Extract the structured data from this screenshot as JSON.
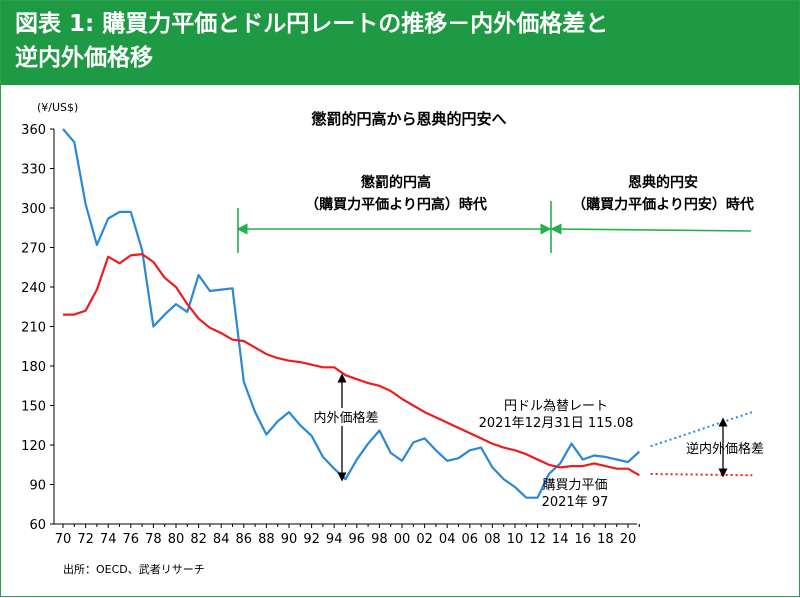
{
  "title": {
    "line1": "図表 1: 購買力平価とドル円レートの推移－内外価格差と",
    "line2": "逆内外価格移"
  },
  "source": "出所：OECD、武者リサーチ",
  "chart_data": {
    "type": "line",
    "ylabel": "(¥/US$)",
    "ylim": [
      60,
      360
    ],
    "yticks": [
      60,
      90,
      120,
      150,
      180,
      210,
      240,
      270,
      300,
      330,
      360
    ],
    "xlim": [
      1970,
      2020
    ],
    "xtick_labels": [
      "70",
      "72",
      "74",
      "76",
      "78",
      "80",
      "82",
      "84",
      "86",
      "88",
      "90",
      "92",
      "94",
      "96",
      "98",
      "00",
      "02",
      "04",
      "06",
      "08",
      "10",
      "12",
      "14",
      "16",
      "18",
      "20"
    ],
    "colors": {
      "exchange": "#2a88d8",
      "ppp": "#ee1c1c",
      "arrow_green": "#22b04a"
    },
    "series": [
      {
        "name": "円ドル為替レート",
        "key": "exchange",
        "x": [
          1970,
          1971,
          1972,
          1973,
          1974,
          1975,
          1976,
          1977,
          1978,
          1979,
          1980,
          1981,
          1982,
          1983,
          1984,
          1985,
          1986,
          1987,
          1988,
          1989,
          1990,
          1991,
          1992,
          1993,
          1994,
          1995,
          1996,
          1997,
          1998,
          1999,
          2000,
          2001,
          2002,
          2003,
          2004,
          2005,
          2006,
          2007,
          2008,
          2009,
          2010,
          2011,
          2012,
          2013,
          2014,
          2015,
          2016,
          2017,
          2018,
          2019,
          2020,
          2021
        ],
        "y": [
          360,
          350,
          303,
          272,
          292,
          297,
          297,
          268,
          210,
          219,
          227,
          221,
          249,
          237,
          238,
          239,
          168,
          145,
          128,
          138,
          145,
          135,
          127,
          111,
          102,
          94,
          109,
          121,
          131,
          114,
          108,
          122,
          125,
          116,
          108,
          110,
          116,
          118,
          103,
          94,
          88,
          80,
          80,
          98,
          106,
          121,
          109,
          112,
          111,
          109,
          107,
          115
        ]
      },
      {
        "name": "購買力平価",
        "key": "ppp",
        "x": [
          1970,
          1971,
          1972,
          1973,
          1974,
          1975,
          1976,
          1977,
          1978,
          1979,
          1980,
          1981,
          1982,
          1983,
          1984,
          1985,
          1986,
          1987,
          1988,
          1989,
          1990,
          1991,
          1992,
          1993,
          1994,
          1995,
          1996,
          1997,
          1998,
          1999,
          2000,
          2001,
          2002,
          2003,
          2004,
          2005,
          2006,
          2007,
          2008,
          2009,
          2010,
          2011,
          2012,
          2013,
          2014,
          2015,
          2016,
          2017,
          2018,
          2019,
          2020,
          2021
        ],
        "y": [
          219,
          219,
          222,
          238,
          263,
          258,
          264,
          265,
          259,
          247,
          240,
          227,
          216,
          209,
          205,
          200,
          199,
          194,
          189,
          186,
          184,
          183,
          181,
          179,
          179,
          173,
          170,
          167,
          165,
          161,
          155,
          150,
          145,
          141,
          137,
          133,
          129,
          125,
          121,
          118,
          116,
          113,
          109,
          105,
          103,
          104,
          104,
          106,
          104,
          102,
          102,
          97
        ]
      }
    ],
    "projections": [
      {
        "key": "exchange",
        "x": [
          2022,
          2031
        ],
        "y": [
          119,
          145
        ]
      },
      {
        "key": "ppp",
        "x": [
          2022,
          2031
        ],
        "y": [
          98,
          97
        ]
      }
    ],
    "annotations": {
      "main_heading": "懲罰的円高から恩典的円安へ",
      "period1_line1": "懲罰的円高",
      "period1_line2": "（購買力平価より円高）時代",
      "period2_line1": "恩典的円安",
      "period2_line2": "（購買力平価より円安）時代",
      "gap_label": "内外価格差",
      "reverse_gap_label": "逆内外価格差",
      "fx_label_line1": "円ドル為替レート",
      "fx_label_line2": "2021年12月31日 115.08",
      "ppp_label_line1": "購買力平価",
      "ppp_label_line2": "2021年 97"
    }
  }
}
